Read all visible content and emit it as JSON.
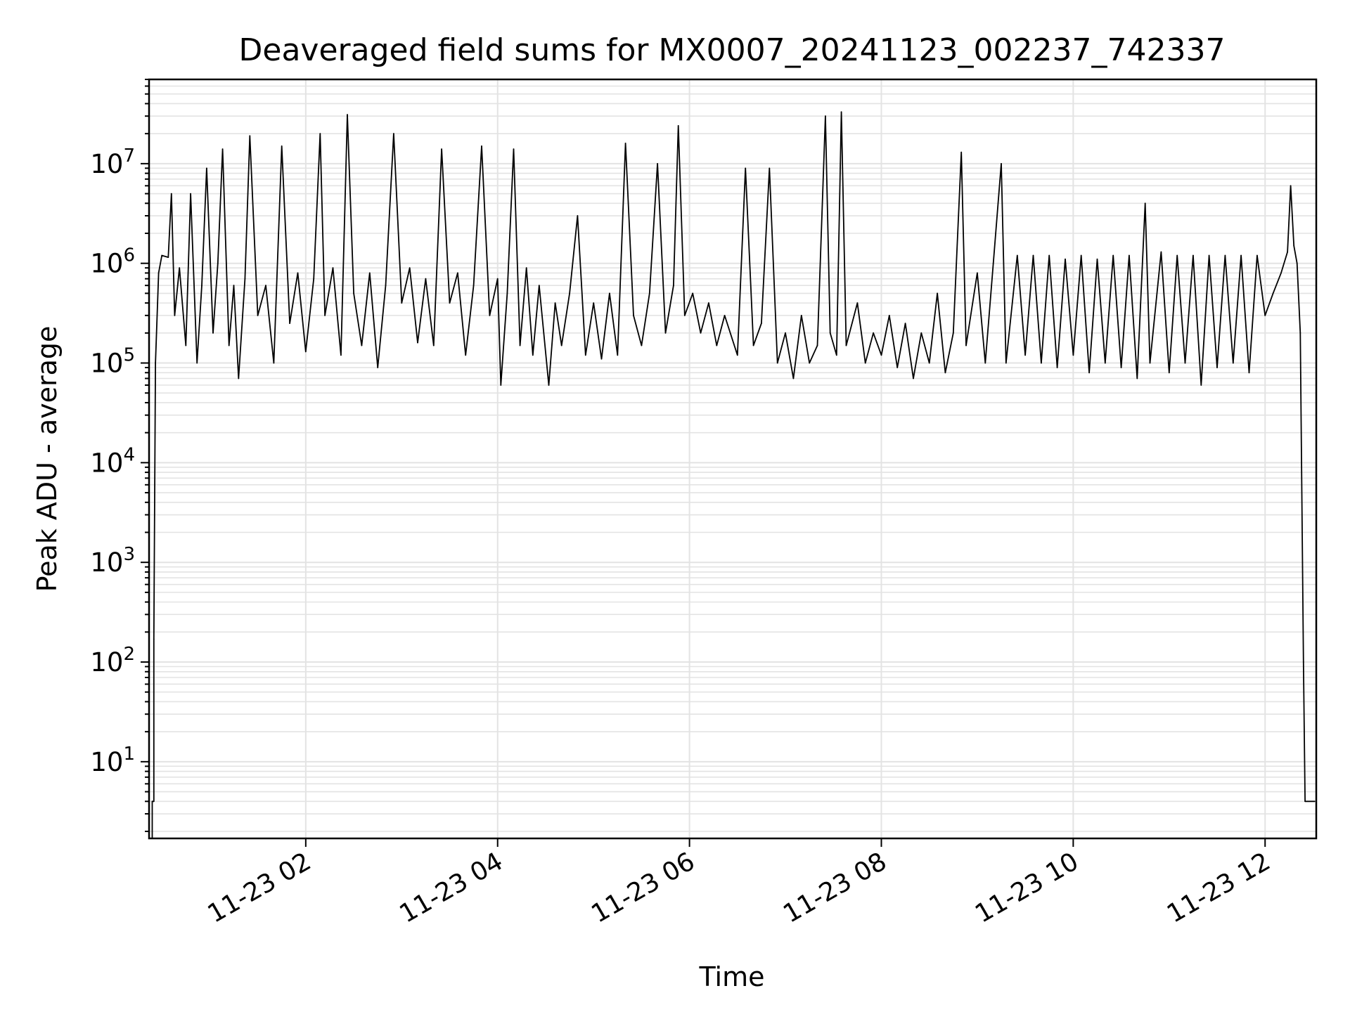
{
  "colors": {
    "background": "#ffffff",
    "line": "#000000",
    "grid": "#e3e3e3",
    "axis": "#000000"
  },
  "chart_data": {
    "type": "line",
    "title": "Deaveraged field sums for MX0007_20241123_002237_742337",
    "xlabel": "Time",
    "ylabel": "Peak ADU - average",
    "xscale": "date",
    "yscale": "log",
    "xlim": [
      "2024-11-23T00:22",
      "2024-11-23T12:32"
    ],
    "ylim": [
      1.7,
      70000000
    ],
    "grid": true,
    "x_tick_labels": [
      "11-23 02",
      "11-23 04",
      "11-23 06",
      "11-23 08",
      "11-23 10",
      "11-23 12"
    ],
    "x_tick_values": [
      "2024-11-23T02:00",
      "2024-11-23T04:00",
      "2024-11-23T06:00",
      "2024-11-23T08:00",
      "2024-11-23T10:00",
      "2024-11-23T12:00"
    ],
    "y_tick_labels": [
      {
        "base": "10",
        "exp": "1",
        "value": 10
      },
      {
        "base": "10",
        "exp": "2",
        "value": 100
      },
      {
        "base": "10",
        "exp": "3",
        "value": 1000
      },
      {
        "base": "10",
        "exp": "4",
        "value": 10000
      },
      {
        "base": "10",
        "exp": "5",
        "value": 100000
      },
      {
        "base": "10",
        "exp": "6",
        "value": 1000000
      },
      {
        "base": "10",
        "exp": "7",
        "value": 10000000
      }
    ],
    "series": [
      {
        "points": [
          [
            "2024-11-23T00:24",
            1.7
          ],
          [
            "2024-11-23T00:24",
            4
          ],
          [
            "2024-11-23T00:25",
            4
          ],
          [
            "2024-11-23T00:25",
            170
          ],
          [
            "2024-11-23T00:26",
            100000
          ],
          [
            "2024-11-23T00:28",
            800000
          ],
          [
            "2024-11-23T00:30",
            1200000
          ],
          [
            "2024-11-23T00:34",
            1150000
          ],
          [
            "2024-11-23T00:36",
            5000000
          ],
          [
            "2024-11-23T00:38",
            300000
          ],
          [
            "2024-11-23T00:41",
            900000
          ],
          [
            "2024-11-23T00:45",
            150000
          ],
          [
            "2024-11-23T00:48",
            5000000
          ],
          [
            "2024-11-23T00:52",
            100000
          ],
          [
            "2024-11-23T00:55",
            600000
          ],
          [
            "2024-11-23T00:58",
            9000000
          ],
          [
            "2024-11-23T01:02",
            200000
          ],
          [
            "2024-11-23T01:05",
            1000000
          ],
          [
            "2024-11-23T01:08",
            14000000
          ],
          [
            "2024-11-23T01:12",
            150000
          ],
          [
            "2024-11-23T01:15",
            600000
          ],
          [
            "2024-11-23T01:18",
            70000
          ],
          [
            "2024-11-23T01:22",
            700000
          ],
          [
            "2024-11-23T01:25",
            19000000
          ],
          [
            "2024-11-23T01:30",
            300000
          ],
          [
            "2024-11-23T01:35",
            600000
          ],
          [
            "2024-11-23T01:40",
            100000
          ],
          [
            "2024-11-23T01:45",
            15000000
          ],
          [
            "2024-11-23T01:50",
            250000
          ],
          [
            "2024-11-23T01:55",
            800000
          ],
          [
            "2024-11-23T02:00",
            130000
          ],
          [
            "2024-11-23T02:05",
            700000
          ],
          [
            "2024-11-23T02:09",
            20000000
          ],
          [
            "2024-11-23T02:12",
            300000
          ],
          [
            "2024-11-23T02:17",
            900000
          ],
          [
            "2024-11-23T02:22",
            120000
          ],
          [
            "2024-11-23T02:26",
            31000000
          ],
          [
            "2024-11-23T02:30",
            500000
          ],
          [
            "2024-11-23T02:35",
            150000
          ],
          [
            "2024-11-23T02:40",
            800000
          ],
          [
            "2024-11-23T02:45",
            90000
          ],
          [
            "2024-11-23T02:50",
            600000
          ],
          [
            "2024-11-23T02:55",
            20000000
          ],
          [
            "2024-11-23T03:00",
            400000
          ],
          [
            "2024-11-23T03:05",
            900000
          ],
          [
            "2024-11-23T03:10",
            160000
          ],
          [
            "2024-11-23T03:15",
            700000
          ],
          [
            "2024-11-23T03:20",
            150000
          ],
          [
            "2024-11-23T03:25",
            14000000
          ],
          [
            "2024-11-23T03:30",
            400000
          ],
          [
            "2024-11-23T03:35",
            800000
          ],
          [
            "2024-11-23T03:40",
            120000
          ],
          [
            "2024-11-23T03:45",
            600000
          ],
          [
            "2024-11-23T03:50",
            15000000
          ],
          [
            "2024-11-23T03:55",
            300000
          ],
          [
            "2024-11-23T04:00",
            700000
          ],
          [
            "2024-11-23T04:02",
            60000
          ],
          [
            "2024-11-23T04:06",
            500000
          ],
          [
            "2024-11-23T04:10",
            14000000
          ],
          [
            "2024-11-23T04:14",
            150000
          ],
          [
            "2024-11-23T04:18",
            900000
          ],
          [
            "2024-11-23T04:22",
            120000
          ],
          [
            "2024-11-23T04:26",
            600000
          ],
          [
            "2024-11-23T04:32",
            60000
          ],
          [
            "2024-11-23T04:36",
            400000
          ],
          [
            "2024-11-23T04:40",
            150000
          ],
          [
            "2024-11-23T04:45",
            500000
          ],
          [
            "2024-11-23T04:50",
            3000000
          ],
          [
            "2024-11-23T04:55",
            120000
          ],
          [
            "2024-11-23T05:00",
            400000
          ],
          [
            "2024-11-23T05:05",
            110000
          ],
          [
            "2024-11-23T05:10",
            500000
          ],
          [
            "2024-11-23T05:15",
            120000
          ],
          [
            "2024-11-23T05:20",
            16000000
          ],
          [
            "2024-11-23T05:25",
            300000
          ],
          [
            "2024-11-23T05:30",
            150000
          ],
          [
            "2024-11-23T05:35",
            500000
          ],
          [
            "2024-11-23T05:40",
            10000000
          ],
          [
            "2024-11-23T05:45",
            200000
          ],
          [
            "2024-11-23T05:50",
            600000
          ],
          [
            "2024-11-23T05:53",
            24000000
          ],
          [
            "2024-11-23T05:57",
            300000
          ],
          [
            "2024-11-23T06:02",
            500000
          ],
          [
            "2024-11-23T06:07",
            200000
          ],
          [
            "2024-11-23T06:12",
            400000
          ],
          [
            "2024-11-23T06:17",
            150000
          ],
          [
            "2024-11-23T06:22",
            300000
          ],
          [
            "2024-11-23T06:30",
            120000
          ],
          [
            "2024-11-23T06:35",
            9000000
          ],
          [
            "2024-11-23T06:40",
            150000
          ],
          [
            "2024-11-23T06:45",
            250000
          ],
          [
            "2024-11-23T06:50",
            9000000
          ],
          [
            "2024-11-23T06:55",
            100000
          ],
          [
            "2024-11-23T07:00",
            200000
          ],
          [
            "2024-11-23T07:05",
            70000
          ],
          [
            "2024-11-23T07:10",
            300000
          ],
          [
            "2024-11-23T07:15",
            100000
          ],
          [
            "2024-11-23T07:20",
            150000
          ],
          [
            "2024-11-23T07:25",
            30000000
          ],
          [
            "2024-11-23T07:28",
            200000
          ],
          [
            "2024-11-23T07:32",
            120000
          ],
          [
            "2024-11-23T07:35",
            33000000
          ],
          [
            "2024-11-23T07:38",
            150000
          ],
          [
            "2024-11-23T07:45",
            400000
          ],
          [
            "2024-11-23T07:50",
            100000
          ],
          [
            "2024-11-23T07:55",
            200000
          ],
          [
            "2024-11-23T08:00",
            120000
          ],
          [
            "2024-11-23T08:05",
            300000
          ],
          [
            "2024-11-23T08:10",
            90000
          ],
          [
            "2024-11-23T08:15",
            250000
          ],
          [
            "2024-11-23T08:20",
            70000
          ],
          [
            "2024-11-23T08:25",
            200000
          ],
          [
            "2024-11-23T08:30",
            100000
          ],
          [
            "2024-11-23T08:35",
            500000
          ],
          [
            "2024-11-23T08:40",
            80000
          ],
          [
            "2024-11-23T08:45",
            200000
          ],
          [
            "2024-11-23T08:50",
            13000000
          ],
          [
            "2024-11-23T08:53",
            150000
          ],
          [
            "2024-11-23T09:00",
            800000
          ],
          [
            "2024-11-23T09:05",
            100000
          ],
          [
            "2024-11-23T09:10",
            1000000
          ],
          [
            "2024-11-23T09:15",
            10000000
          ],
          [
            "2024-11-23T09:18",
            100000
          ],
          [
            "2024-11-23T09:25",
            1200000
          ],
          [
            "2024-11-23T09:30",
            120000
          ],
          [
            "2024-11-23T09:35",
            1200000
          ],
          [
            "2024-11-23T09:40",
            100000
          ],
          [
            "2024-11-23T09:45",
            1200000
          ],
          [
            "2024-11-23T09:50",
            90000
          ],
          [
            "2024-11-23T09:55",
            1100000
          ],
          [
            "2024-11-23T10:00",
            120000
          ],
          [
            "2024-11-23T10:05",
            1200000
          ],
          [
            "2024-11-23T10:10",
            80000
          ],
          [
            "2024-11-23T10:15",
            1100000
          ],
          [
            "2024-11-23T10:20",
            100000
          ],
          [
            "2024-11-23T10:25",
            1200000
          ],
          [
            "2024-11-23T10:30",
            90000
          ],
          [
            "2024-11-23T10:35",
            1200000
          ],
          [
            "2024-11-23T10:40",
            70000
          ],
          [
            "2024-11-23T10:45",
            4000000
          ],
          [
            "2024-11-23T10:48",
            100000
          ],
          [
            "2024-11-23T10:55",
            1300000
          ],
          [
            "2024-11-23T11:00",
            80000
          ],
          [
            "2024-11-23T11:05",
            1200000
          ],
          [
            "2024-11-23T11:10",
            100000
          ],
          [
            "2024-11-23T11:15",
            1200000
          ],
          [
            "2024-11-23T11:20",
            60000
          ],
          [
            "2024-11-23T11:25",
            1200000
          ],
          [
            "2024-11-23T11:30",
            90000
          ],
          [
            "2024-11-23T11:35",
            1200000
          ],
          [
            "2024-11-23T11:40",
            100000
          ],
          [
            "2024-11-23T11:45",
            1200000
          ],
          [
            "2024-11-23T11:50",
            80000
          ],
          [
            "2024-11-23T11:55",
            1200000
          ],
          [
            "2024-11-23T12:00",
            300000
          ],
          [
            "2024-11-23T12:05",
            500000
          ],
          [
            "2024-11-23T12:10",
            800000
          ],
          [
            "2024-11-23T12:14",
            1300000
          ],
          [
            "2024-11-23T12:16",
            6000000
          ],
          [
            "2024-11-23T12:18",
            1500000
          ],
          [
            "2024-11-23T12:20",
            1000000
          ],
          [
            "2024-11-23T12:22",
            200000
          ],
          [
            "2024-11-23T12:24",
            100
          ],
          [
            "2024-11-23T12:25",
            4
          ],
          [
            "2024-11-23T12:31",
            4
          ]
        ]
      }
    ]
  }
}
